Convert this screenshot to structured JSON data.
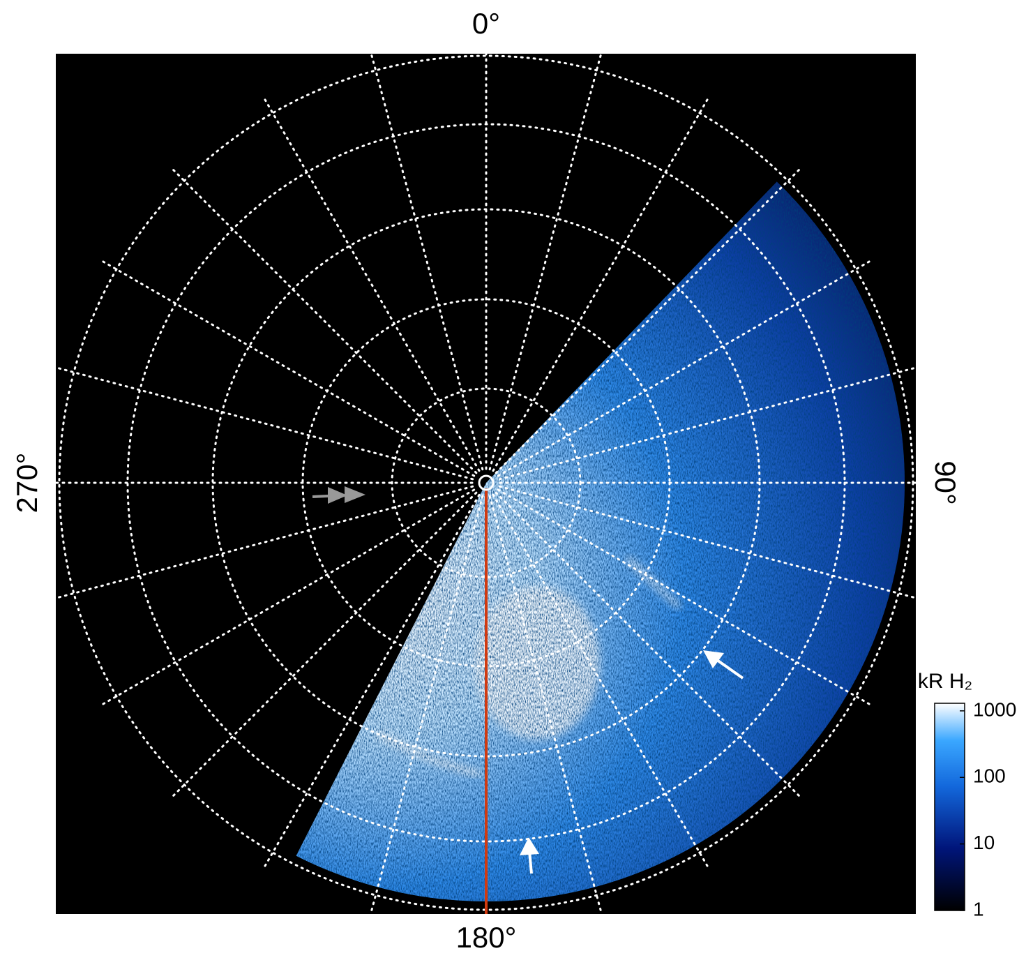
{
  "chart_data": {
    "type": "polar",
    "angle_ticks": [
      {
        "value": 0,
        "label": "0°"
      },
      {
        "value": 90,
        "label": "90°"
      },
      {
        "value": 180,
        "label": "180°"
      },
      {
        "value": 270,
        "label": "270°"
      }
    ],
    "grid": true,
    "colorbar": {
      "title": "kR H₂",
      "log": true,
      "ylim": [
        1,
        1300
      ],
      "yticks": [
        1,
        10,
        100,
        1000
      ]
    }
  }
}
